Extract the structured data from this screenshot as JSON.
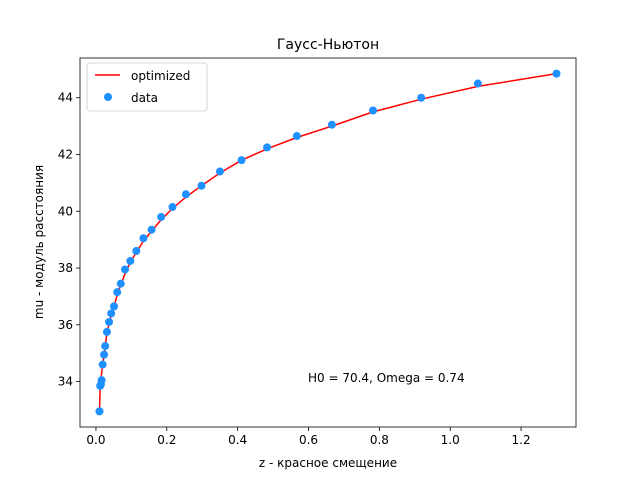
{
  "chart_data": {
    "type": "scatter",
    "title": "Гаусс-Ньютон",
    "xlabel": "z - красное смещение",
    "ylabel": "mu - модуль расстояния",
    "xlim": [
      -0.045,
      1.355
    ],
    "ylim": [
      32.4,
      45.4
    ],
    "xticks": [
      0.0,
      0.2,
      0.4,
      0.6,
      0.8,
      1.0,
      1.2
    ],
    "xtick_labels": [
      "0.0",
      "0.2",
      "0.4",
      "0.6",
      "0.8",
      "1.0",
      "1.2"
    ],
    "yticks": [
      34,
      36,
      38,
      40,
      42,
      44
    ],
    "ytick_labels": [
      "34",
      "36",
      "38",
      "40",
      "42",
      "44"
    ],
    "grid": false,
    "legend_position": "top-left",
    "annotation": "H0 = 70.4, Omega = 0.74",
    "series": [
      {
        "name": "optimized",
        "kind": "line",
        "color": "#ff0000",
        "x": [
          0.01,
          0.012,
          0.014,
          0.016,
          0.019,
          0.023,
          0.026,
          0.031,
          0.037,
          0.043,
          0.051,
          0.06,
          0.07,
          0.082,
          0.097,
          0.114,
          0.134,
          0.157,
          0.184,
          0.216,
          0.254,
          0.298,
          0.35,
          0.411,
          0.483,
          0.567,
          0.666,
          0.782,
          0.918,
          1.078,
          1.3
        ],
        "y": [
          32.95,
          33.85,
          34.05,
          34.3,
          34.6,
          34.95,
          35.25,
          35.7,
          36.05,
          36.35,
          36.65,
          37.05,
          37.4,
          37.8,
          38.2,
          38.55,
          38.95,
          39.3,
          39.7,
          40.1,
          40.5,
          40.9,
          41.35,
          41.8,
          42.2,
          42.6,
          43.0,
          43.5,
          43.95,
          44.4,
          44.85
        ]
      },
      {
        "name": "data",
        "kind": "scatter",
        "color": "#1e90ff",
        "x": [
          0.01,
          0.012,
          0.014,
          0.016,
          0.019,
          0.023,
          0.026,
          0.031,
          0.037,
          0.043,
          0.051,
          0.06,
          0.07,
          0.082,
          0.097,
          0.114,
          0.134,
          0.157,
          0.184,
          0.216,
          0.254,
          0.298,
          0.35,
          0.411,
          0.483,
          0.567,
          0.666,
          0.782,
          0.918,
          1.078,
          1.3
        ],
        "y": [
          32.95,
          33.85,
          33.9,
          34.05,
          34.6,
          34.95,
          35.25,
          35.75,
          36.1,
          36.4,
          36.65,
          37.15,
          37.45,
          37.95,
          38.25,
          38.6,
          39.05,
          39.35,
          39.8,
          40.15,
          40.6,
          40.9,
          41.4,
          41.8,
          42.25,
          42.65,
          43.05,
          43.55,
          44.0,
          44.5,
          44.85
        ]
      }
    ]
  }
}
